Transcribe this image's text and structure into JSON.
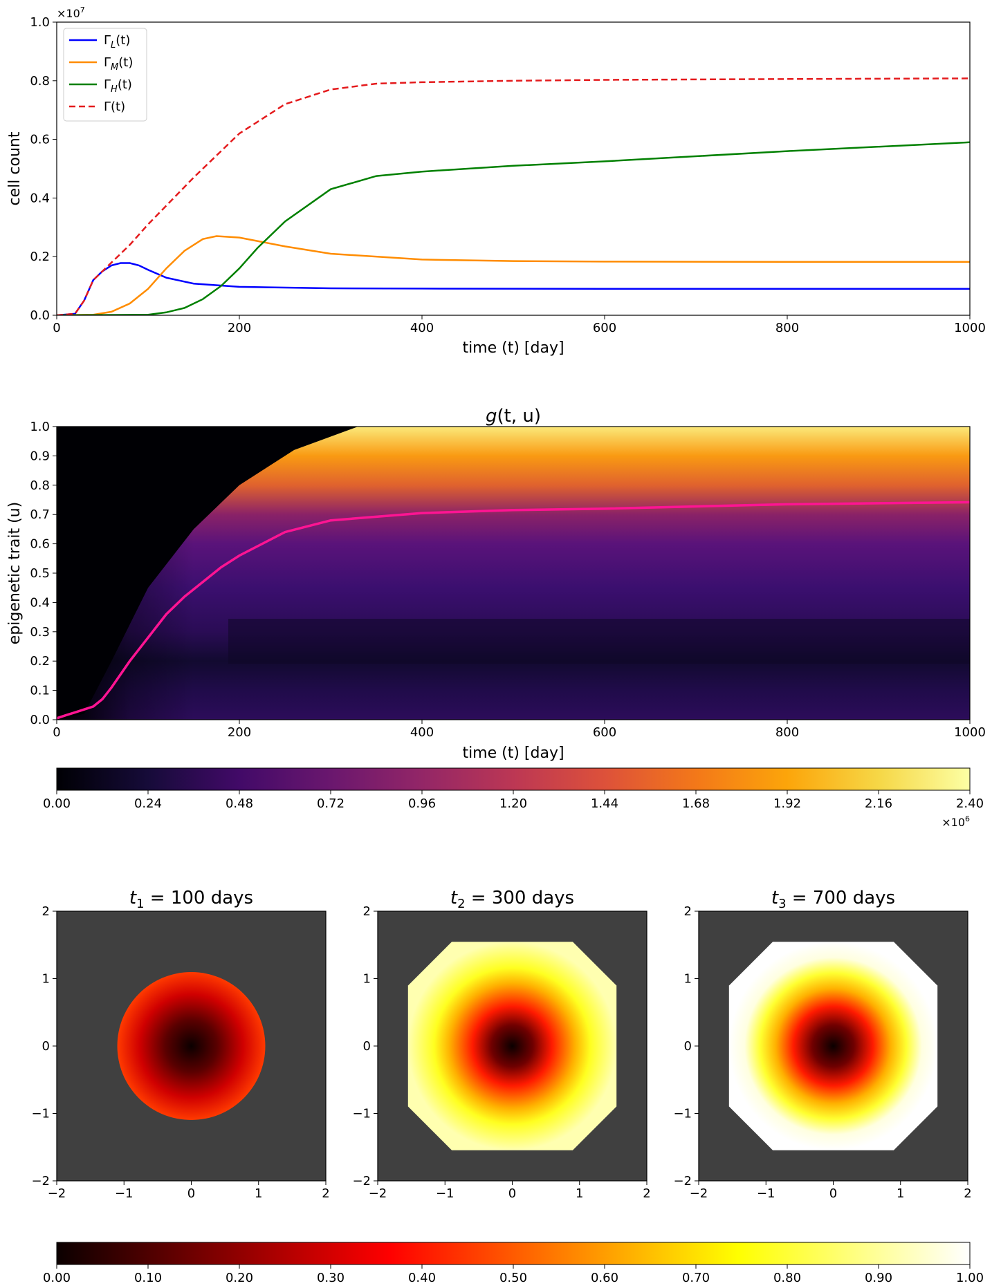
{
  "chart_data": [
    {
      "type": "line",
      "xlabel": "time (t) [day]",
      "ylabel": "cell count",
      "xlim": [
        0,
        1000
      ],
      "ylim": [
        0,
        1.0
      ],
      "y_multiplier_label": "×10",
      "y_multiplier_exp": "7",
      "xticks": [
        "0",
        "200",
        "400",
        "600",
        "800",
        "1000"
      ],
      "yticks": [
        "0.0",
        "0.2",
        "0.4",
        "0.6",
        "0.8",
        "1.0"
      ],
      "legend_placement": "top-left",
      "series": [
        {
          "name": "Γ_L(t)",
          "legend_main": "Γ",
          "legend_sub": "L",
          "legend_tail": "(t)",
          "color": "#0000ff",
          "dash": "solid",
          "x": [
            0,
            20,
            30,
            40,
            50,
            60,
            70,
            80,
            90,
            100,
            120,
            150,
            200,
            300,
            400,
            600,
            800,
            1000
          ],
          "y": [
            0,
            0.005,
            0.05,
            0.12,
            0.15,
            0.17,
            0.178,
            0.178,
            0.17,
            0.155,
            0.128,
            0.108,
            0.097,
            0.092,
            0.091,
            0.09,
            0.09,
            0.09
          ]
        },
        {
          "name": "Γ_M(t)",
          "legend_main": "Γ",
          "legend_sub": "M",
          "legend_tail": "(t)",
          "color": "#ff8c00",
          "dash": "solid",
          "x": [
            0,
            40,
            60,
            80,
            100,
            120,
            140,
            160,
            175,
            200,
            250,
            300,
            400,
            500,
            600,
            800,
            1000
          ],
          "y": [
            0,
            0.002,
            0.012,
            0.04,
            0.09,
            0.16,
            0.22,
            0.26,
            0.27,
            0.265,
            0.235,
            0.21,
            0.19,
            0.185,
            0.183,
            0.182,
            0.182
          ]
        },
        {
          "name": "Γ_H(t)",
          "legend_main": "Γ",
          "legend_sub": "H",
          "legend_tail": "(t)",
          "color": "#008000",
          "dash": "solid",
          "x": [
            0,
            100,
            120,
            140,
            160,
            180,
            200,
            220,
            250,
            300,
            350,
            400,
            500,
            600,
            800,
            1000
          ],
          "y": [
            0,
            0.002,
            0.01,
            0.025,
            0.055,
            0.1,
            0.16,
            0.23,
            0.32,
            0.43,
            0.475,
            0.49,
            0.51,
            0.525,
            0.56,
            0.59
          ]
        },
        {
          "name": "Γ(t)",
          "legend_main": "Γ",
          "legend_sub": "",
          "legend_tail": "(t)",
          "color": "#e41a1c",
          "dash": "dashed",
          "x": [
            0,
            20,
            30,
            40,
            50,
            60,
            80,
            100,
            150,
            200,
            250,
            300,
            350,
            400,
            500,
            600,
            800,
            1000
          ],
          "y": [
            0,
            0.005,
            0.05,
            0.12,
            0.15,
            0.18,
            0.24,
            0.31,
            0.47,
            0.62,
            0.72,
            0.77,
            0.79,
            0.795,
            0.8,
            0.803,
            0.806,
            0.808
          ]
        }
      ]
    },
    {
      "type": "heatmap",
      "title_main": "g",
      "title_args": "(t, u)",
      "xlabel": "time (t) [day]",
      "ylabel": "epigenetic trait (u)",
      "xlim": [
        0,
        1000
      ],
      "ylim": [
        0,
        1.0
      ],
      "xticks": [
        "0",
        "200",
        "400",
        "600",
        "800",
        "1000"
      ],
      "yticks": [
        "0.0",
        "0.1",
        "0.2",
        "0.3",
        "0.4",
        "0.5",
        "0.6",
        "0.7",
        "0.8",
        "0.9",
        "1.0"
      ],
      "colormap": "inferno",
      "colorbar_ticks": [
        "0.00",
        "0.24",
        "0.48",
        "0.72",
        "0.96",
        "1.20",
        "1.44",
        "1.68",
        "1.92",
        "2.16",
        "2.40"
      ],
      "colorbar_multiplier_label": "×10",
      "colorbar_multiplier_exp": "6",
      "mean_trait_line": {
        "color": "#ff1493",
        "x": [
          0,
          10,
          20,
          30,
          40,
          50,
          60,
          80,
          100,
          120,
          140,
          160,
          180,
          200,
          250,
          300,
          400,
          500,
          600,
          800,
          1000
        ],
        "y": [
          0.005,
          0.015,
          0.025,
          0.035,
          0.045,
          0.07,
          0.11,
          0.2,
          0.28,
          0.36,
          0.42,
          0.47,
          0.52,
          0.56,
          0.64,
          0.68,
          0.705,
          0.715,
          0.72,
          0.735,
          0.742
        ]
      }
    },
    {
      "type": "heatmap",
      "subtype": "spatial-snapshots",
      "xlim": [
        -2,
        2
      ],
      "ylim": [
        -2,
        2
      ],
      "xticks": [
        "−2",
        "−1",
        "0",
        "1",
        "2"
      ],
      "yticks": [
        "−2",
        "−1",
        "0",
        "1",
        "2"
      ],
      "colormap": "hot",
      "background_color": "#404040",
      "colorbar_ticks": [
        "0.00",
        "0.10",
        "0.20",
        "0.30",
        "0.40",
        "0.50",
        "0.60",
        "0.70",
        "0.80",
        "0.90",
        "1.00"
      ],
      "panels": [
        {
          "title_var": "t",
          "title_sub": "1",
          "title_rest": " = 100 days",
          "radius": 1.1,
          "edge_value": 0.45
        },
        {
          "title_var": "t",
          "title_sub": "2",
          "title_rest": " = 300 days",
          "radius": 1.55,
          "edge_value": 0.85
        },
        {
          "title_var": "t",
          "title_sub": "3",
          "title_rest": " = 700 days",
          "radius": 1.55,
          "edge_value": 1.0
        }
      ]
    }
  ]
}
